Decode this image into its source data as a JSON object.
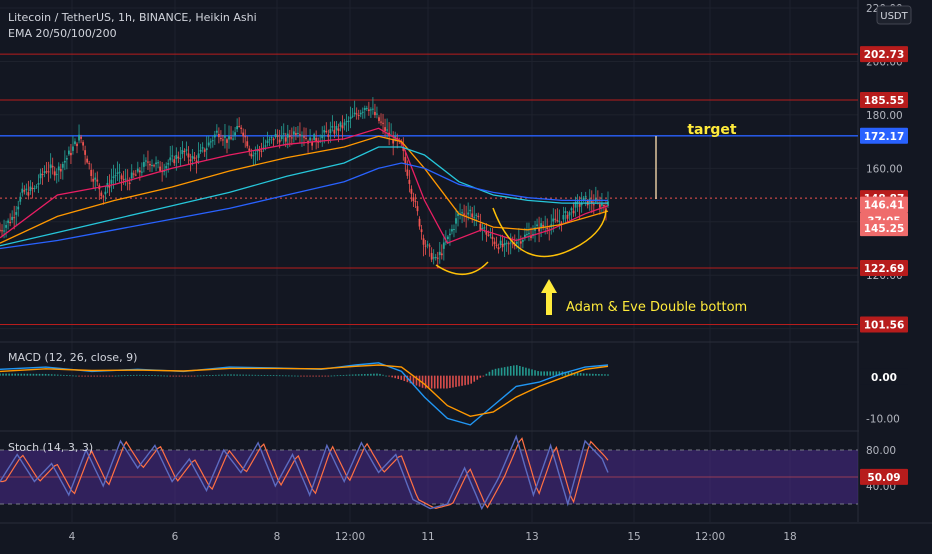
{
  "legend": {
    "main": "Litecoin / TetherUS, 1h, BINANCE, Heikin Ashi",
    "ema": "EMA 20/50/100/200",
    "macd": "MACD (12, 26, close, 9)",
    "stoch": "Stoch (14, 3, 3)"
  },
  "currency_badge": "USDT",
  "colors": {
    "background": "#131722",
    "up": "#26a69a",
    "down": "#ef5350",
    "ema20": "#e91e63",
    "ema50": "#ff9800",
    "ema100": "#26c6da",
    "ema200": "#2962ff",
    "hline_red": "#b71c1c",
    "hline_blue": "#2962ff",
    "annotation": "#ffeb3b",
    "cup": "#ffc107",
    "stoch_band": "#4a2a8c",
    "axis_text": "#b2b5be"
  },
  "annotations": {
    "target": "target",
    "pattern": "Adam & Eve Double bottom"
  },
  "chart_data": [
    {
      "type": "candlestick",
      "panel": "price",
      "ylim": [
        95,
        223
      ],
      "y_ticks": [
        "220.00",
        "200.00",
        "180.00",
        "160.00",
        "140.00",
        "120.00",
        "100.00"
      ],
      "x_ticks": [
        "4",
        "6",
        "8",
        "12:00",
        "11",
        "13",
        "15",
        "12:00",
        "18"
      ],
      "horizontal_levels": [
        {
          "value": 202.73,
          "label": "202.73",
          "color": "red"
        },
        {
          "value": 185.55,
          "label": "185.55",
          "color": "red"
        },
        {
          "value": 172.17,
          "label": "172.17",
          "color": "blue"
        },
        {
          "value": 122.69,
          "label": "122.69",
          "color": "red"
        },
        {
          "value": 101.56,
          "label": "101.56",
          "color": "red"
        }
      ],
      "price_labels": [
        {
          "value": 148.87,
          "label": "148.87",
          "style": "dark-red"
        },
        {
          "value": 146.41,
          "label": "146.41",
          "style": "light-red"
        },
        {
          "value": 140.5,
          "label": "37:05",
          "style": "light-red"
        },
        {
          "value": 137.6,
          "label": "145.25",
          "style": "light-red"
        }
      ],
      "close_path": [
        [
          0,
          137
        ],
        [
          2,
          141
        ],
        [
          4,
          151
        ],
        [
          6,
          152
        ],
        [
          8,
          160
        ],
        [
          10,
          159
        ],
        [
          12,
          165
        ],
        [
          14,
          172
        ],
        [
          16,
          158
        ],
        [
          18,
          150
        ],
        [
          20,
          158
        ],
        [
          22,
          155
        ],
        [
          24,
          158
        ],
        [
          26,
          163
        ],
        [
          28,
          160
        ],
        [
          30,
          163
        ],
        [
          32,
          166
        ],
        [
          34,
          163
        ],
        [
          36,
          168
        ],
        [
          38,
          174
        ],
        [
          40,
          170
        ],
        [
          42,
          176
        ],
        [
          44,
          165
        ],
        [
          46,
          168
        ],
        [
          48,
          172
        ],
        [
          50,
          171
        ],
        [
          52,
          175
        ],
        [
          54,
          170
        ],
        [
          56,
          172
        ],
        [
          58,
          174
        ],
        [
          60,
          176
        ],
        [
          62,
          180
        ],
        [
          64,
          184
        ],
        [
          66,
          178
        ],
        [
          68,
          172
        ],
        [
          70,
          168
        ],
        [
          72,
          150
        ],
        [
          74,
          132
        ],
        [
          76,
          125
        ],
        [
          78,
          133
        ],
        [
          80,
          143
        ],
        [
          82,
          144
        ],
        [
          84,
          138
        ],
        [
          86,
          133
        ],
        [
          88,
          130
        ],
        [
          90,
          133
        ],
        [
          92,
          135
        ],
        [
          94,
          138
        ],
        [
          96,
          139
        ],
        [
          98,
          141
        ],
        [
          100,
          145
        ],
        [
          102,
          148
        ],
        [
          104,
          147
        ],
        [
          106,
          146
        ]
      ],
      "ema_series": [
        {
          "name": "EMA 20",
          "points": [
            [
              0,
              134
            ],
            [
              10,
              150
            ],
            [
              20,
              154
            ],
            [
              30,
              160
            ],
            [
              40,
              165
            ],
            [
              50,
              169
            ],
            [
              60,
              171
            ],
            [
              66,
              175
            ],
            [
              70,
              170
            ],
            [
              74,
              148
            ],
            [
              78,
              132
            ],
            [
              84,
              137
            ],
            [
              90,
              133
            ],
            [
              96,
              137
            ],
            [
              102,
              143
            ],
            [
              106,
              146
            ]
          ]
        },
        {
          "name": "EMA 50",
          "points": [
            [
              0,
              132
            ],
            [
              10,
              142
            ],
            [
              20,
              148
            ],
            [
              30,
              153
            ],
            [
              40,
              159
            ],
            [
              50,
              164
            ],
            [
              60,
              168
            ],
            [
              66,
              172
            ],
            [
              70,
              170
            ],
            [
              74,
              160
            ],
            [
              80,
              143
            ],
            [
              86,
              138
            ],
            [
              92,
              137
            ],
            [
              98,
              139
            ],
            [
              106,
              144
            ]
          ]
        },
        {
          "name": "EMA 100",
          "points": [
            [
              0,
              131
            ],
            [
              10,
              136
            ],
            [
              20,
              141
            ],
            [
              30,
              146
            ],
            [
              40,
              151
            ],
            [
              50,
              157
            ],
            [
              60,
              162
            ],
            [
              66,
              168
            ],
            [
              70,
              168
            ],
            [
              74,
              165
            ],
            [
              80,
              155
            ],
            [
              86,
              150
            ],
            [
              92,
              148
            ],
            [
              98,
              147
            ],
            [
              106,
              147
            ]
          ]
        },
        {
          "name": "EMA 200",
          "points": [
            [
              0,
              130
            ],
            [
              10,
              133
            ],
            [
              20,
              137
            ],
            [
              30,
              141
            ],
            [
              40,
              145
            ],
            [
              50,
              150
            ],
            [
              60,
              155
            ],
            [
              66,
              160
            ],
            [
              70,
              162
            ],
            [
              74,
              160
            ],
            [
              80,
              154
            ],
            [
              86,
              151
            ],
            [
              92,
              149
            ],
            [
              98,
              148
            ],
            [
              106,
              148
            ]
          ]
        }
      ]
    },
    {
      "type": "macd",
      "panel": "macd",
      "ylim": [
        -12,
        6
      ],
      "y_ticks": [
        "0.00",
        "-10.00"
      ],
      "macd_line": [
        [
          0,
          1.5
        ],
        [
          8,
          2
        ],
        [
          16,
          1
        ],
        [
          24,
          1.5
        ],
        [
          32,
          1
        ],
        [
          40,
          2
        ],
        [
          48,
          1.8
        ],
        [
          56,
          1.5
        ],
        [
          62,
          2.5
        ],
        [
          66,
          3
        ],
        [
          70,
          1
        ],
        [
          74,
          -5
        ],
        [
          78,
          -10
        ],
        [
          82,
          -11.5
        ],
        [
          86,
          -7
        ],
        [
          90,
          -2.5
        ],
        [
          94,
          -1.5
        ],
        [
          98,
          0.5
        ],
        [
          102,
          2
        ],
        [
          106,
          2.5
        ]
      ],
      "signal_line": [
        [
          0,
          1
        ],
        [
          8,
          1.6
        ],
        [
          16,
          1.2
        ],
        [
          24,
          1.3
        ],
        [
          32,
          1.1
        ],
        [
          40,
          1.7
        ],
        [
          48,
          1.7
        ],
        [
          56,
          1.6
        ],
        [
          62,
          2.2
        ],
        [
          66,
          2.5
        ],
        [
          70,
          2
        ],
        [
          74,
          -2
        ],
        [
          78,
          -7
        ],
        [
          82,
          -9.5
        ],
        [
          86,
          -8.5
        ],
        [
          90,
          -5
        ],
        [
          94,
          -2.5
        ],
        [
          98,
          -0.5
        ],
        [
          102,
          1.5
        ],
        [
          106,
          2.2
        ]
      ]
    },
    {
      "type": "stochastic",
      "panel": "stoch",
      "ylim": [
        0,
        100
      ],
      "band": [
        20,
        80
      ],
      "midline": 50,
      "y_ticks": [
        "80.00",
        "40.00"
      ],
      "last_value": "50.09",
      "k_line": [
        [
          0,
          45
        ],
        [
          3,
          75
        ],
        [
          6,
          45
        ],
        [
          9,
          65
        ],
        [
          12,
          30
        ],
        [
          15,
          80
        ],
        [
          18,
          40
        ],
        [
          21,
          90
        ],
        [
          24,
          60
        ],
        [
          27,
          85
        ],
        [
          30,
          45
        ],
        [
          33,
          70
        ],
        [
          36,
          35
        ],
        [
          39,
          80
        ],
        [
          42,
          55
        ],
        [
          45,
          88
        ],
        [
          48,
          40
        ],
        [
          51,
          75
        ],
        [
          54,
          30
        ],
        [
          57,
          85
        ],
        [
          60,
          45
        ],
        [
          63,
          88
        ],
        [
          66,
          55
        ],
        [
          69,
          75
        ],
        [
          72,
          25
        ],
        [
          75,
          15
        ],
        [
          78,
          20
        ],
        [
          81,
          60
        ],
        [
          84,
          15
        ],
        [
          87,
          50
        ],
        [
          90,
          95
        ],
        [
          93,
          30
        ],
        [
          96,
          85
        ],
        [
          99,
          20
        ],
        [
          102,
          90
        ],
        [
          105,
          70
        ],
        [
          106,
          55
        ]
      ]
    }
  ]
}
